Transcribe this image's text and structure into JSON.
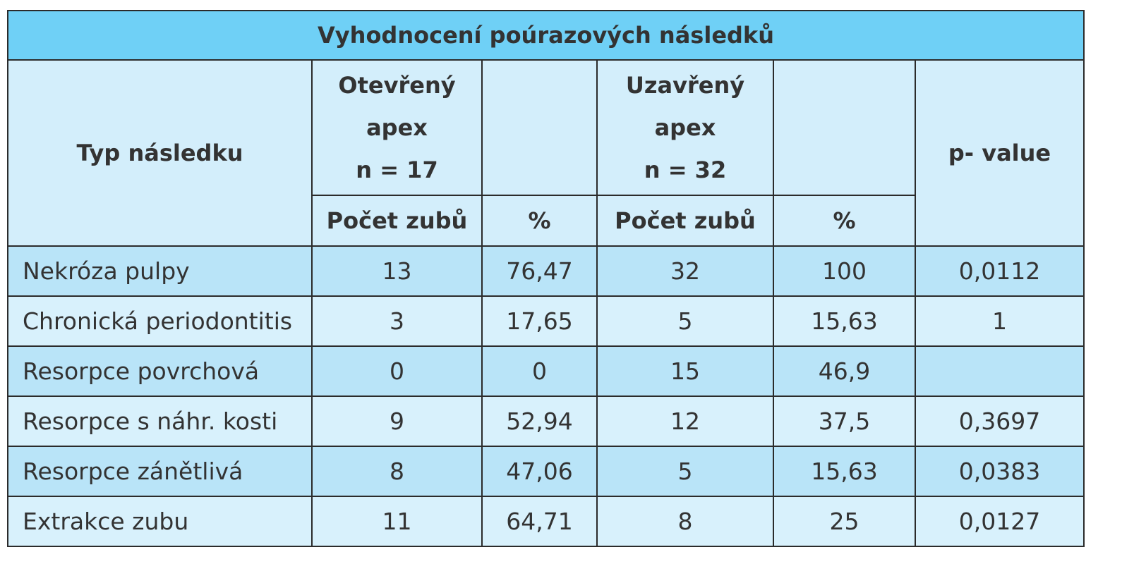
{
  "table": {
    "title": "Vyhodnocení poúrazových následků",
    "header": {
      "type": "Typ následku",
      "open": [
        "Otevřený",
        "apex",
        "n = 17"
      ],
      "closed": [
        "Uzavřený",
        "apex",
        "n = 32"
      ],
      "pvalue": "p- value",
      "sub": [
        "Počet zubů",
        "%",
        "Počet zubů",
        "%"
      ]
    },
    "rows": [
      [
        "Nekróza pulpy",
        "13",
        "76,47",
        "32",
        "100",
        "0,0112"
      ],
      [
        "Chronická periodontitis",
        "3",
        "17,65",
        "5",
        "15,63",
        "1"
      ],
      [
        "Resorpce povrchová",
        "0",
        "0",
        "15",
        "46,9",
        null
      ],
      [
        "Resorpce s náhr. kosti",
        "9",
        "52,94",
        "12",
        "37,5",
        "0,3697"
      ],
      [
        "Resorpce zánětlivá",
        "8",
        "47,06",
        "5",
        "15,63",
        "0,0383"
      ],
      [
        "Extrakce zubu",
        "11",
        "64,71",
        "8",
        "25",
        "0,0127"
      ]
    ]
  }
}
